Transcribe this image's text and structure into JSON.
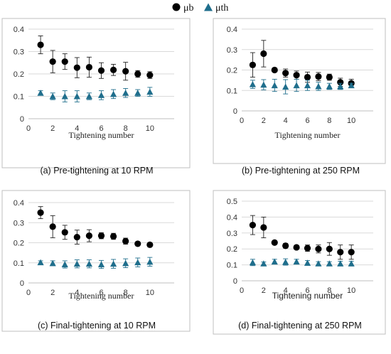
{
  "legend": {
    "series_b": "μb",
    "series_th": "μth"
  },
  "colors": {
    "mu_b": "#000000",
    "mu_th": "#1f6e8c",
    "grid": "#d9d9d9",
    "frame": "#bfbfbf",
    "errbar": "#000000"
  },
  "chart_data": [
    {
      "type": "scatter",
      "caption": "(a)  Pre-tightening at 10 RPM",
      "xlabel": "Tightening number",
      "xlim": [
        0,
        12
      ],
      "xticks": [
        0,
        2,
        4,
        6,
        8,
        10
      ],
      "ylim": [
        0,
        0.4
      ],
      "yticks": [
        0,
        0.1,
        0.2,
        0.3,
        0.4
      ],
      "ytick_labels": [
        "0",
        "0.1",
        "0.2",
        "0.3",
        "0.4"
      ],
      "grid": "horizontal",
      "x": [
        1,
        2,
        3,
        4,
        5,
        6,
        7,
        8,
        9,
        10
      ],
      "series": [
        {
          "name": "μb",
          "marker": "circle",
          "values": [
            0.33,
            0.255,
            0.255,
            0.228,
            0.23,
            0.215,
            0.218,
            0.212,
            0.2,
            0.195
          ],
          "errors": [
            0.04,
            0.05,
            0.035,
            0.045,
            0.045,
            0.035,
            0.025,
            0.04,
            0.015,
            0.015
          ]
        },
        {
          "name": "μth",
          "marker": "triangle",
          "values": [
            0.115,
            0.1,
            0.1,
            0.1,
            0.1,
            0.105,
            0.11,
            0.115,
            0.115,
            0.12
          ],
          "errors": [
            0.01,
            0.015,
            0.025,
            0.025,
            0.015,
            0.02,
            0.02,
            0.02,
            0.015,
            0.02
          ]
        }
      ]
    },
    {
      "type": "scatter",
      "caption": "(b)  Pre-tightening at 250 RPM",
      "xlabel": "Tightening number",
      "xlim": [
        0,
        12
      ],
      "xticks": [
        0,
        2,
        4,
        6,
        8,
        10
      ],
      "ylim": [
        0,
        0.4
      ],
      "yticks": [
        0,
        0.1,
        0.2,
        0.3,
        0.4
      ],
      "ytick_labels": [
        "0",
        "0.1",
        "0.2",
        "0.3",
        "0.4"
      ],
      "grid": "horizontal",
      "x": [
        1,
        2,
        3,
        4,
        5,
        6,
        7,
        8,
        9,
        10
      ],
      "series": [
        {
          "name": "μb",
          "marker": "circle",
          "values": [
            0.225,
            0.28,
            0.2,
            0.185,
            0.175,
            0.165,
            0.168,
            0.165,
            0.14,
            0.135
          ],
          "errors": [
            0.06,
            0.065,
            0.01,
            0.02,
            0.02,
            0.025,
            0.02,
            0.015,
            0.02,
            0.02
          ]
        },
        {
          "name": "μth",
          "marker": "triangle",
          "values": [
            0.13,
            0.128,
            0.125,
            0.118,
            0.125,
            0.125,
            0.12,
            0.12,
            0.12,
            0.125
          ],
          "errors": [
            0.02,
            0.025,
            0.03,
            0.035,
            0.03,
            0.025,
            0.02,
            0.015,
            0.015,
            0.01
          ]
        }
      ]
    },
    {
      "type": "scatter",
      "caption": "(c)  Final-tightening at 10 RPM",
      "xlabel": "Tightening number",
      "xlim": [
        0,
        12
      ],
      "xticks": [
        0,
        2,
        4,
        6,
        8,
        10
      ],
      "ylim": [
        0,
        0.4
      ],
      "yticks": [
        0,
        0.1,
        0.2,
        0.3,
        0.4
      ],
      "ytick_labels": [
        "0",
        "0.1",
        "0.2",
        "0.3",
        "0.4"
      ],
      "grid": "horizontal",
      "x": [
        1,
        2,
        3,
        4,
        5,
        6,
        7,
        8,
        9,
        10
      ],
      "series": [
        {
          "name": "μb",
          "marker": "circle",
          "values": [
            0.35,
            0.28,
            0.252,
            0.228,
            0.235,
            0.235,
            0.232,
            0.208,
            0.195,
            0.19
          ],
          "errors": [
            0.03,
            0.055,
            0.035,
            0.035,
            0.03,
            0.015,
            0.015,
            0.015,
            0.005,
            0.005
          ]
        },
        {
          "name": "μth",
          "marker": "triangle",
          "values": [
            0.102,
            0.098,
            0.092,
            0.095,
            0.095,
            0.092,
            0.095,
            0.098,
            0.102,
            0.105
          ],
          "errors": [
            0.008,
            0.012,
            0.018,
            0.02,
            0.02,
            0.02,
            0.022,
            0.022,
            0.022,
            0.022
          ]
        }
      ]
    },
    {
      "type": "scatter",
      "caption": "(d)  Final-tightening at 250 RPM",
      "xlabel": "Tightening number",
      "xlim": [
        0,
        12
      ],
      "xticks": [
        0,
        2,
        4,
        6,
        8,
        10
      ],
      "ylim": [
        0,
        0.5
      ],
      "yticks": [
        0,
        0.1,
        0.2,
        0.3,
        0.4,
        0.5
      ],
      "ytick_labels": [
        "0",
        "0.1",
        "0.2",
        "0.3",
        "0.4",
        "0.5"
      ],
      "grid": "horizontal",
      "x": [
        1,
        2,
        3,
        4,
        5,
        6,
        7,
        8,
        9,
        10
      ],
      "series": [
        {
          "name": "μb",
          "marker": "circle",
          "values": [
            0.35,
            0.335,
            0.24,
            0.22,
            0.21,
            0.205,
            0.2,
            0.2,
            0.18,
            0.18
          ],
          "errors": [
            0.06,
            0.065,
            0.01,
            0.015,
            0.01,
            0.02,
            0.025,
            0.04,
            0.045,
            0.045
          ]
        },
        {
          "name": "μth",
          "marker": "triangle",
          "values": [
            0.115,
            0.108,
            0.12,
            0.118,
            0.12,
            0.112,
            0.108,
            0.108,
            0.108,
            0.108
          ],
          "errors": [
            0.02,
            0.01,
            0.015,
            0.02,
            0.015,
            0.015,
            0.012,
            0.012,
            0.015,
            0.015
          ]
        }
      ]
    }
  ]
}
